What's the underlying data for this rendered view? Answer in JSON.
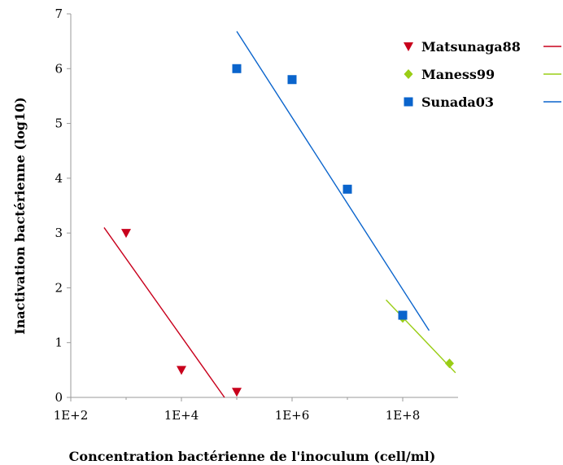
{
  "chart_data": {
    "type": "scatter",
    "xlabel": "Concentration bactérienne de l'inoculum (cell/ml)",
    "ylabel": "Inactivation bactérienne (log10)",
    "x_scale": "log10",
    "xlim": [
      100,
      1000000000
    ],
    "ylim": [
      0,
      7
    ],
    "x_ticks": [
      {
        "value": 100,
        "label": "1E+2"
      },
      {
        "value": 10000,
        "label": "1E+4"
      },
      {
        "value": 1000000,
        "label": "1E+6"
      },
      {
        "value": 100000000,
        "label": "1E+8"
      }
    ],
    "y_ticks": [
      {
        "value": 0,
        "label": "0"
      },
      {
        "value": 1,
        "label": "1"
      },
      {
        "value": 2,
        "label": "2"
      },
      {
        "value": 3,
        "label": "3"
      },
      {
        "value": 4,
        "label": "4"
      },
      {
        "value": 5,
        "label": "5"
      },
      {
        "value": 6,
        "label": "6"
      },
      {
        "value": 7,
        "label": "7"
      }
    ],
    "grid": false,
    "legend_position": "top-right",
    "series": [
      {
        "name": "Matsunaga88",
        "marker": "triangle-down",
        "color": "#c8001c",
        "points": [
          {
            "x": 1000,
            "y": 3.0
          },
          {
            "x": 10000,
            "y": 0.5
          },
          {
            "x": 100000,
            "y": 0.1
          }
        ],
        "trendline": [
          {
            "x": 400,
            "y": 3.1
          },
          {
            "x": 60000,
            "y": 0.0
          }
        ]
      },
      {
        "name": "Maness99",
        "marker": "diamond",
        "color": "#9acd16",
        "points": [
          {
            "x": 100000000,
            "y": 1.45
          },
          {
            "x": 700000000,
            "y": 0.62
          }
        ],
        "trendline": [
          {
            "x": 50000000,
            "y": 1.78
          },
          {
            "x": 900000000,
            "y": 0.45
          }
        ]
      },
      {
        "name": "Sunada03",
        "marker": "square",
        "color": "#0a64cc",
        "points": [
          {
            "x": 100000,
            "y": 6.0
          },
          {
            "x": 1000000,
            "y": 5.8
          },
          {
            "x": 10000000,
            "y": 3.8
          },
          {
            "x": 100000000,
            "y": 1.5
          }
        ],
        "trendline": [
          {
            "x": 100000,
            "y": 6.68
          },
          {
            "x": 300000000,
            "y": 1.22
          }
        ]
      }
    ]
  }
}
